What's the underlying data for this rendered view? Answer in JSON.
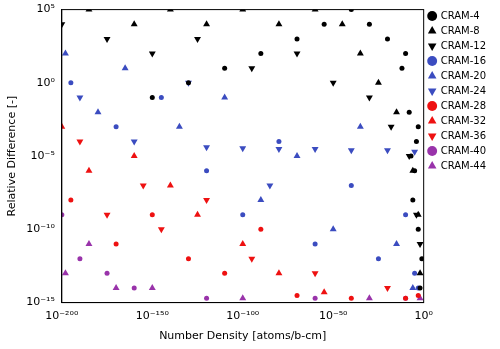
{
  "chart_data": {
    "type": "scatter",
    "x_label": "Number Density [atoms/b-cm]",
    "y_label": "Relative Difference [-]",
    "log": true,
    "grid": false,
    "legend": "outside-top-right",
    "xlim": [
      1e-200,
      1
    ],
    "ylim": [
      1e-15,
      100000.0
    ],
    "xticks": [
      {
        "value": 1e-200,
        "label": "10⁻²⁰⁰"
      },
      {
        "value": 1e-150,
        "label": "10⁻¹⁵⁰"
      },
      {
        "value": 1e-100,
        "label": "10⁻¹⁰⁰"
      },
      {
        "value": 1e-50,
        "label": "10⁻⁵⁰"
      },
      {
        "value": 1,
        "label": "10⁰"
      }
    ],
    "yticks": [
      {
        "value": 1e-15,
        "label": "10⁻¹⁵"
      },
      {
        "value": 1e-10,
        "label": "10⁻¹⁰"
      },
      {
        "value": 1e-05,
        "label": "10⁻⁵"
      },
      {
        "value": 1,
        "label": "10⁰"
      },
      {
        "value": 100000.0,
        "label": "10⁵"
      }
    ],
    "series": [
      {
        "name": "CRAM-4",
        "color": "#000000",
        "marker": "circle",
        "x": [
          0.01,
          0.001,
          1e-05,
          1e-08,
          1e-12,
          1e-20,
          1e-30,
          1e-40,
          1e-55,
          1e-70,
          1e-90,
          1e-110,
          1e-130,
          1e-150,
          0.0001,
          1e-06,
          0.1,
          0.001,
          1e-07,
          1e-10
        ],
        "values": [
          1e-14,
          1e-10,
          1e-06,
          0.01,
          10,
          1000,
          10000,
          100000,
          10000,
          1000,
          100,
          10,
          1,
          0.1,
          0.0001,
          1e-08,
          1e-12,
          0.001,
          1e-05,
          100
        ]
      },
      {
        "name": "CRAM-8",
        "color": "#000000",
        "marker": "triangle-up",
        "x": [
          1e-185,
          1e-160,
          1e-140,
          1e-120,
          1e-100,
          1e-80,
          1e-60,
          1e-45,
          1e-35,
          1e-25,
          1e-15,
          1e-06,
          0.001,
          0.01
        ],
        "values": [
          100000,
          10000,
          100000,
          10000,
          100000,
          10000,
          100000,
          10000,
          100,
          1,
          0.01,
          1e-06,
          1e-09,
          1e-13
        ]
      },
      {
        "name": "CRAM-12",
        "color": "#000000",
        "marker": "triangle-down",
        "x": [
          1e-200,
          1e-175,
          1e-150,
          1e-125,
          1e-95,
          1e-70,
          1e-50,
          1e-30,
          1e-18,
          1e-08,
          0.0001,
          0.01
        ],
        "values": [
          10000,
          1000,
          100,
          1000,
          10,
          100,
          1,
          0.1,
          0.001,
          1e-05,
          1e-09,
          1e-11
        ]
      },
      {
        "name": "CRAM-16",
        "color": "#3b4cc0",
        "marker": "circle",
        "x": [
          1e-195,
          1e-170,
          1e-145,
          1e-120,
          1e-100,
          1e-80,
          1e-60,
          1e-40,
          1e-25,
          1e-10,
          1e-05,
          0.001
        ],
        "values": [
          1,
          0.001,
          0.1,
          1e-06,
          1e-09,
          0.0001,
          1e-11,
          1e-07,
          1e-12,
          1e-09,
          1e-13,
          1e-14
        ]
      },
      {
        "name": "CRAM-20",
        "color": "#3b4cc0",
        "marker": "triangle-up",
        "x": [
          1e-198,
          1e-180,
          1e-165,
          1e-135,
          1e-110,
          1e-90,
          1e-70,
          1e-50,
          1e-35,
          1e-15,
          1e-06
        ],
        "values": [
          100,
          0.01,
          10,
          0.001,
          0.1,
          1e-08,
          1e-05,
          1e-10,
          0.001,
          1e-11,
          1e-14
        ]
      },
      {
        "name": "CRAM-24",
        "color": "#3b4cc0",
        "marker": "triangle-down",
        "x": [
          1e-120,
          1e-100,
          1e-80,
          1e-60,
          1e-40,
          1e-20,
          1e-05,
          1e-190,
          1e-160,
          1e-130,
          1e-85
        ],
        "values": [
          4e-05,
          3.5e-05,
          3e-05,
          3e-05,
          2.5e-05,
          2.5e-05,
          2e-05,
          0.1,
          0.0001,
          1,
          1e-07
        ]
      },
      {
        "name": "CRAM-28",
        "color": "#ee1111",
        "marker": "circle",
        "x": [
          1e-195,
          1e-170,
          1e-150,
          1e-130,
          1e-110,
          1e-90,
          1e-70,
          1e-40,
          1e-10,
          0.001
        ],
        "values": [
          1e-08,
          1e-11,
          1e-09,
          1e-12,
          1e-13,
          1e-10,
          3e-15,
          2e-15,
          2e-15,
          3e-15
        ]
      },
      {
        "name": "CRAM-32",
        "color": "#ee1111",
        "marker": "triangle-up",
        "x": [
          1e-200,
          1e-185,
          1e-160,
          1e-140,
          1e-125,
          1e-100,
          1e-80,
          1e-55
        ],
        "values": [
          0.001,
          1e-06,
          1e-05,
          1e-07,
          1e-09,
          1e-11,
          1e-13,
          5e-15
        ]
      },
      {
        "name": "CRAM-36",
        "color": "#ee1111",
        "marker": "triangle-down",
        "x": [
          1e-190,
          1e-175,
          1e-155,
          1e-145,
          1e-120,
          1e-95,
          1e-60,
          1e-20
        ],
        "values": [
          0.0001,
          1e-09,
          1e-07,
          1e-10,
          1e-08,
          1e-12,
          1e-13,
          1e-14
        ]
      },
      {
        "name": "CRAM-40",
        "color": "#9933aa",
        "marker": "circle",
        "x": [
          1e-200,
          1e-190,
          1e-175,
          1e-160,
          1e-120,
          1e-60,
          1e-10
        ],
        "values": [
          1e-09,
          1e-12,
          1e-13,
          1e-14,
          2e-15,
          2e-15,
          2e-15
        ]
      },
      {
        "name": "CRAM-44",
        "color": "#9933aa",
        "marker": "triangle-up",
        "x": [
          1e-198,
          1e-185,
          1e-170,
          1e-150,
          1e-100,
          1e-30,
          0.01
        ],
        "values": [
          1e-13,
          1e-11,
          1e-14,
          1e-14,
          2e-15,
          2e-15,
          2e-15
        ]
      }
    ]
  }
}
